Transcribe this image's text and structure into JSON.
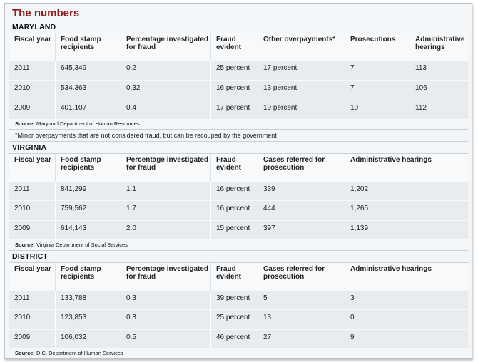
{
  "title": "The numbers",
  "maryland": {
    "label": "MARYLAND",
    "headers": [
      "Fiscal year",
      "Food stamp recipients",
      "Percentage investigated for fraud",
      "Fraud evident",
      "Other overpayments*",
      "Prosecutions",
      "Administrative hearings"
    ],
    "rows": [
      [
        "2011",
        "645,349",
        "0.2",
        "25 percent",
        "17 percent",
        "7",
        "113"
      ],
      [
        "2010",
        "534,363",
        "0.32",
        "16 percent",
        "13 percent",
        "7",
        "106"
      ],
      [
        "2009",
        "401,107",
        "0.4",
        "17 percent",
        "19 percent",
        "10",
        "112"
      ]
    ],
    "source_label": "Source:",
    "source_text": "Maryland Department of Human Resources",
    "note": "*Minor overpayments that are not considered fraud, but can be recouped by the government"
  },
  "virginia": {
    "label": "VIRGINIA",
    "headers": [
      "Fiscal year",
      "Food stamp recipients",
      "Percentage investigated for fraud",
      "Fraud evident",
      "Cases referred for prosecution",
      "Administrative hearings"
    ],
    "rows": [
      [
        "2011",
        "841,299",
        "1.1",
        "16 percent",
        "339",
        "1,202"
      ],
      [
        "2010",
        "759,562",
        "1.7",
        "16 percent",
        "444",
        "1,265"
      ],
      [
        "2009",
        "614,143",
        "2.0",
        "15 percent",
        "397",
        "1,139"
      ]
    ],
    "source_label": "Source:",
    "source_text": "Virginia Department of Social Services"
  },
  "district": {
    "label": "DISTRICT",
    "headers": [
      "Fiscal year",
      "Food stamp recipients",
      "Percentage investigated for fraud",
      "Fraud evident",
      "Cases referred for prosecution",
      "Administrative hearings"
    ],
    "rows": [
      [
        "2011",
        "133,788",
        "0.3",
        "39 percent",
        "5",
        "3"
      ],
      [
        "2010",
        "123,853",
        "0.8",
        "25 percent",
        "13",
        "0"
      ],
      [
        "2009",
        "106,032",
        "0.5",
        "46 percent",
        "27",
        "9"
      ]
    ],
    "source_label": "Source:",
    "source_text": "D.C. Department of Human Services"
  }
}
